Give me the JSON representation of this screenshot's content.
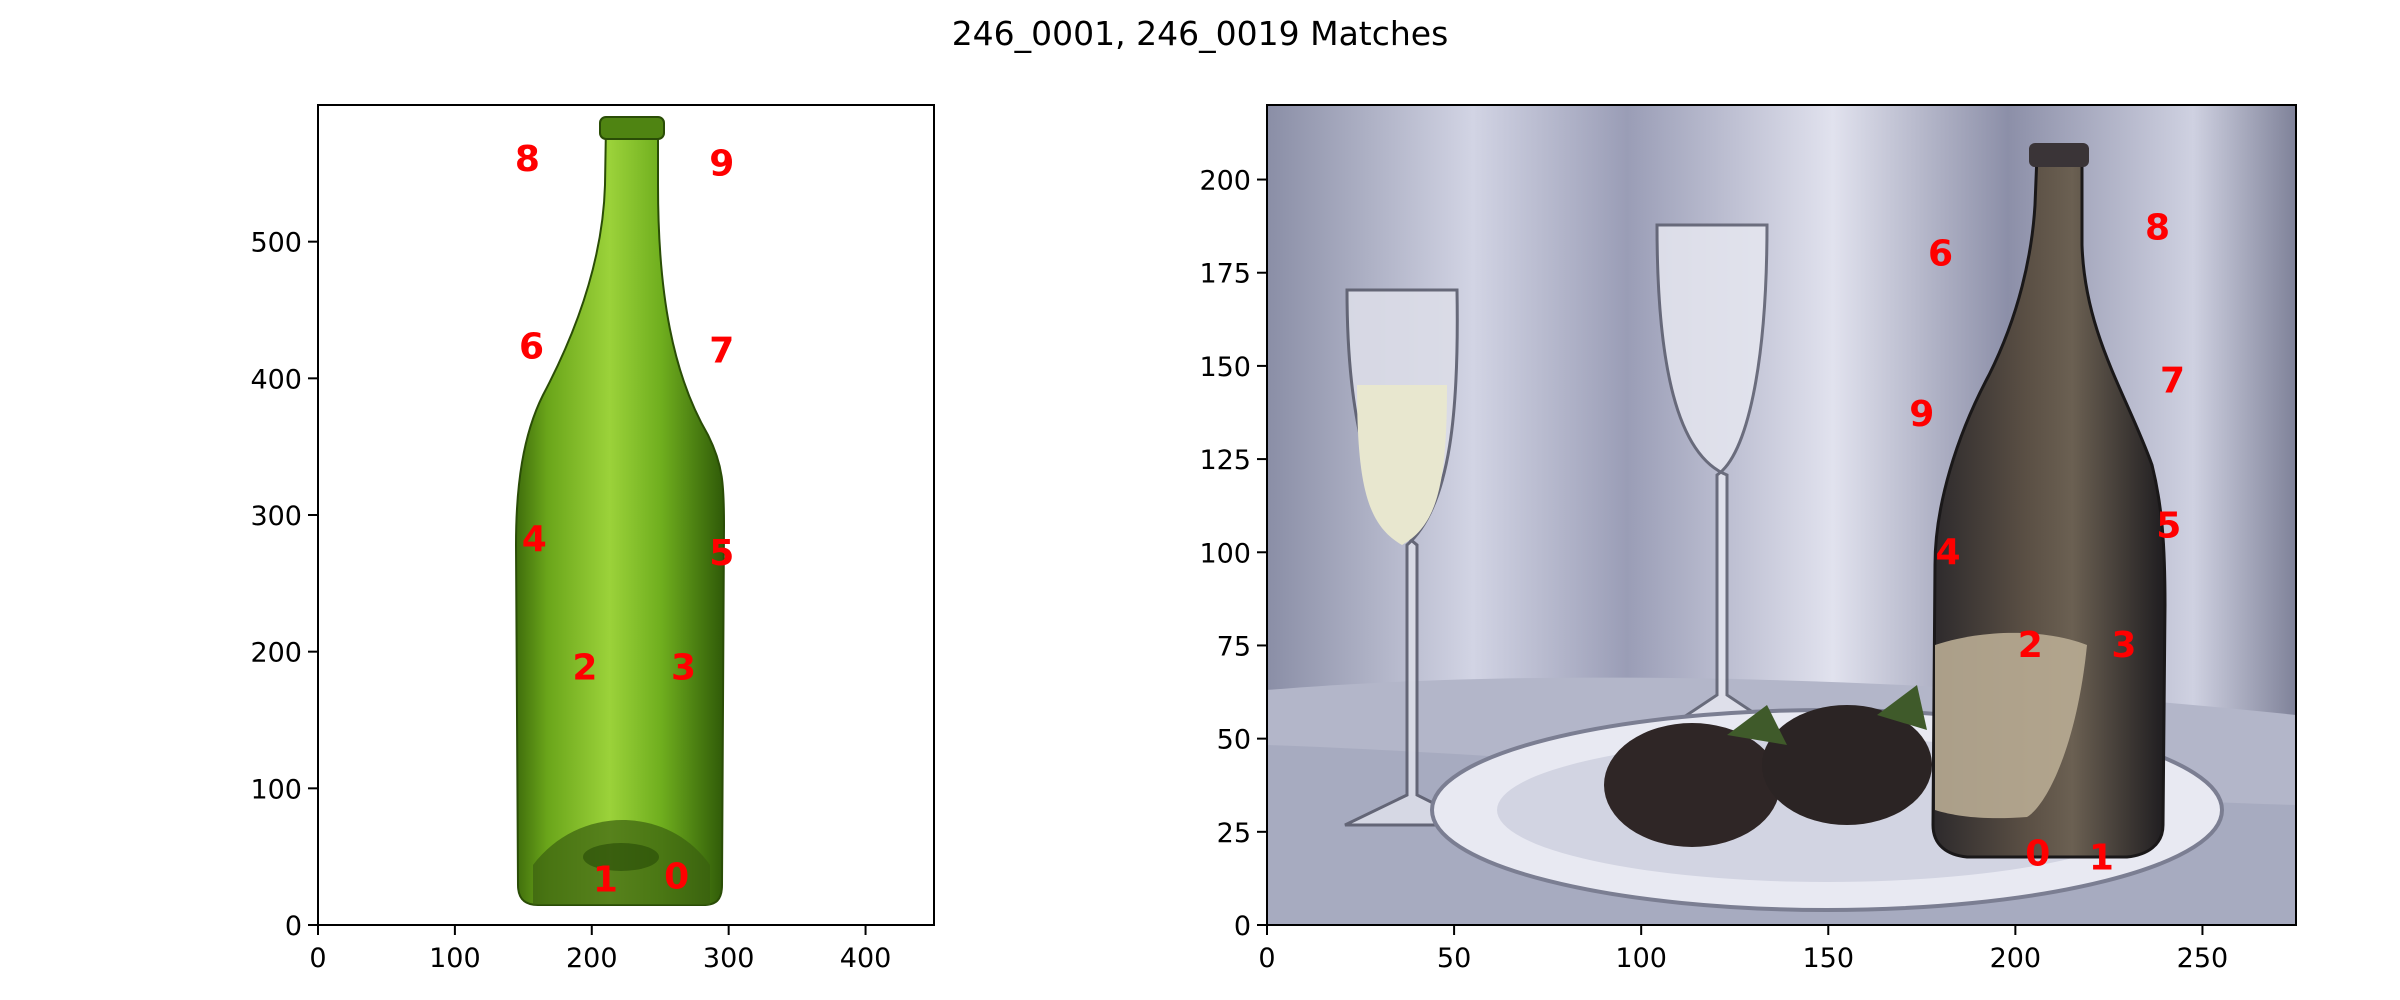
{
  "figure": {
    "title": "246_0001, 246_0019 Matches",
    "label_color": "#ff0000"
  },
  "chart_data": [
    {
      "type": "scatter",
      "image_content": "green wine bottle on white background",
      "xlim": [
        0,
        450
      ],
      "ylim": [
        600,
        0
      ],
      "x_ticks": [
        0,
        100,
        200,
        300,
        400
      ],
      "y_ticks": [
        0,
        100,
        200,
        300,
        400,
        500
      ],
      "grid": false,
      "points": [
        {
          "label": "0",
          "x": 262,
          "y": 35
        },
        {
          "label": "1",
          "x": 210,
          "y": 33
        },
        {
          "label": "2",
          "x": 195,
          "y": 188
        },
        {
          "label": "3",
          "x": 267,
          "y": 188
        },
        {
          "label": "4",
          "x": 158,
          "y": 282
        },
        {
          "label": "5",
          "x": 295,
          "y": 272
        },
        {
          "label": "6",
          "x": 156,
          "y": 423
        },
        {
          "label": "7",
          "x": 295,
          "y": 420
        },
        {
          "label": "8",
          "x": 153,
          "y": 560
        },
        {
          "label": "9",
          "x": 295,
          "y": 557
        }
      ]
    },
    {
      "type": "scatter",
      "image_content": "still-life painting: two glasses, dark bottle, plate with chocolate strawberries, white drapery",
      "xlim": [
        0,
        275
      ],
      "ylim": [
        220,
        0
      ],
      "x_ticks": [
        0,
        50,
        100,
        150,
        200,
        250
      ],
      "y_ticks": [
        0,
        25,
        50,
        75,
        100,
        125,
        150,
        175,
        200
      ],
      "grid": false,
      "points": [
        {
          "label": "0",
          "x": 206,
          "y": 19
        },
        {
          "label": "1",
          "x": 223,
          "y": 18
        },
        {
          "label": "2",
          "x": 204,
          "y": 75
        },
        {
          "label": "3",
          "x": 229,
          "y": 75
        },
        {
          "label": "4",
          "x": 182,
          "y": 100
        },
        {
          "label": "5",
          "x": 241,
          "y": 107
        },
        {
          "label": "6",
          "x": 180,
          "y": 180
        },
        {
          "label": "7",
          "x": 242,
          "y": 146
        },
        {
          "label": "8",
          "x": 238,
          "y": 187
        },
        {
          "label": "9",
          "x": 175,
          "y": 137
        }
      ]
    }
  ]
}
